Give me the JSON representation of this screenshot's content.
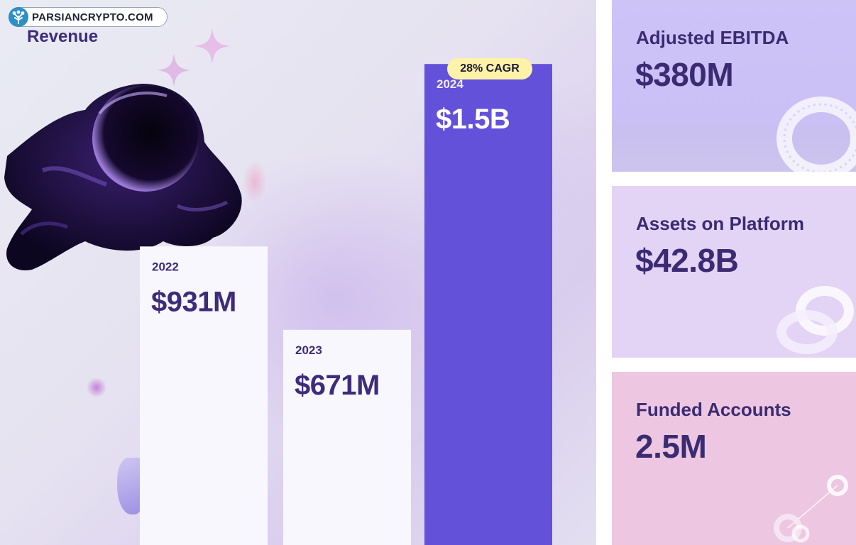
{
  "watermark": {
    "text": "PARSIANCRYPTO.COM"
  },
  "chart_data": {
    "type": "bar",
    "title": "Revenue",
    "categories": [
      "2022",
      "2023",
      "2024"
    ],
    "values": [
      931,
      671,
      1500
    ],
    "value_labels": [
      "$931M",
      "$671M",
      "$1.5B"
    ],
    "unit": "USD millions",
    "ylim": [
      0,
      1600
    ],
    "bar_colors": [
      "#f8f7fd",
      "#f8f7fd",
      "#6451da"
    ],
    "year_colors": [
      "#3d2c7a",
      "#3d2c7a",
      "#eeeaff"
    ],
    "label_colors": [
      "#3d2c7a",
      "#3d2c7a",
      "#ffffff"
    ],
    "annotation": "28% CAGR",
    "grid": false,
    "legend": "none"
  },
  "stats": [
    {
      "label": "Adjusted EBITDA",
      "value": "$380M"
    },
    {
      "label": "Assets on Platform",
      "value": "$42.8B"
    },
    {
      "label": "Funded Accounts",
      "value": "2.5M"
    }
  ],
  "colors": {
    "title": "#3d2c7a",
    "highlight_bar": "#6451da",
    "badge": "#fdf3a8",
    "card_ebitda": "#cdc3f7",
    "card_assets": "#e3d3f4",
    "card_accounts": "#edc7e1"
  }
}
